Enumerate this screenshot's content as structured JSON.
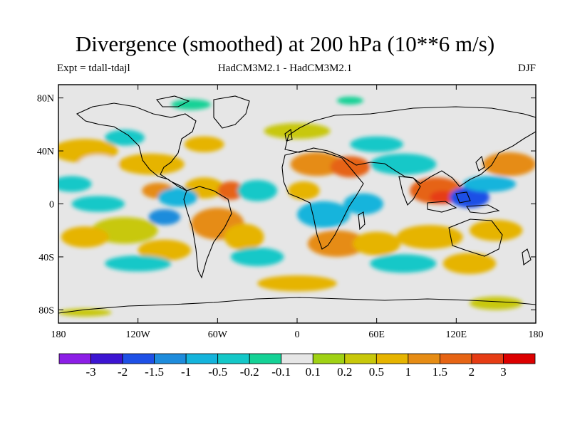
{
  "title": "Divergence (smoothed) at 200 hPa (10**6 m/s)",
  "experiment": "Expt = tdall-tdajl",
  "models": "HadCM3M2.1 - HadCM3M2.1",
  "season": "DJF",
  "map": {
    "lon_range": [
      -180,
      180
    ],
    "lat_range": [
      -90,
      90
    ],
    "lat_ticks": [
      {
        "lat": 80,
        "label": "80N"
      },
      {
        "lat": 40,
        "label": "40N"
      },
      {
        "lat": 0,
        "label": "0"
      },
      {
        "lat": -40,
        "label": "40S"
      },
      {
        "lat": -80,
        "label": "80S"
      }
    ],
    "lon_ticks": [
      {
        "lon": -180,
        "label": "180"
      },
      {
        "lon": -120,
        "label": "120W"
      },
      {
        "lon": -60,
        "label": "60W"
      },
      {
        "lon": 0,
        "label": "0"
      },
      {
        "lon": 60,
        "label": "60E"
      },
      {
        "lon": 120,
        "label": "120E"
      },
      {
        "lon": 180,
        "label": "180"
      }
    ],
    "background_color": "#e6e6e6"
  },
  "colorbar": {
    "colors": [
      "#8c1ee6",
      "#3c14d2",
      "#1e50e6",
      "#1e8cdc",
      "#14b4dc",
      "#14c8c8",
      "#14d296",
      "#e6e6e6",
      "#a0d214",
      "#c8c80a",
      "#e6b400",
      "#e68c14",
      "#e66414",
      "#e63c14",
      "#dc0000"
    ],
    "labels": [
      "-3",
      "-2",
      "-1.5",
      "-1",
      "-0.5",
      "-0.2",
      "-0.1",
      "0.1",
      "0.2",
      "0.5",
      "1",
      "1.5",
      "2",
      "3"
    ]
  },
  "field_blobs": [
    {
      "lon": -160,
      "lat": 40,
      "rx": 25,
      "ry": 9,
      "level": 10
    },
    {
      "lon": -150,
      "lat": 30,
      "rx": 15,
      "ry": 7,
      "level": 7
    },
    {
      "lon": -110,
      "lat": 30,
      "rx": 25,
      "ry": 8,
      "level": 10
    },
    {
      "lon": -105,
      "lat": 10,
      "rx": 12,
      "ry": 6,
      "level": 11
    },
    {
      "lon": -70,
      "lat": 12,
      "rx": 15,
      "ry": 8,
      "level": 10
    },
    {
      "lon": -50,
      "lat": 10,
      "rx": 10,
      "ry": 7,
      "level": 12
    },
    {
      "lon": -60,
      "lat": -15,
      "rx": 20,
      "ry": 12,
      "level": 11
    },
    {
      "lon": -40,
      "lat": -25,
      "rx": 15,
      "ry": 10,
      "level": 10
    },
    {
      "lon": -130,
      "lat": -20,
      "rx": 25,
      "ry": 10,
      "level": 9
    },
    {
      "lon": -160,
      "lat": -25,
      "rx": 18,
      "ry": 8,
      "level": 10
    },
    {
      "lon": -100,
      "lat": -35,
      "rx": 20,
      "ry": 8,
      "level": 10
    },
    {
      "lon": 15,
      "lat": 30,
      "rx": 20,
      "ry": 9,
      "level": 11
    },
    {
      "lon": 40,
      "lat": 28,
      "rx": 15,
      "ry": 8,
      "level": 12
    },
    {
      "lon": 5,
      "lat": 10,
      "rx": 12,
      "ry": 7,
      "level": 10
    },
    {
      "lon": 30,
      "lat": -30,
      "rx": 22,
      "ry": 10,
      "level": 11
    },
    {
      "lon": 60,
      "lat": -30,
      "rx": 18,
      "ry": 9,
      "level": 10
    },
    {
      "lon": 105,
      "lat": 10,
      "rx": 20,
      "ry": 10,
      "level": 12
    },
    {
      "lon": 110,
      "lat": 5,
      "rx": 10,
      "ry": 5,
      "level": 13
    },
    {
      "lon": 160,
      "lat": 30,
      "rx": 20,
      "ry": 9,
      "level": 11
    },
    {
      "lon": 150,
      "lat": -20,
      "rx": 20,
      "ry": 8,
      "level": 10
    },
    {
      "lon": 100,
      "lat": -25,
      "rx": 25,
      "ry": 9,
      "level": 10
    },
    {
      "lon": 130,
      "lat": -45,
      "rx": 20,
      "ry": 8,
      "level": 10
    },
    {
      "lon": -70,
      "lat": 45,
      "rx": 15,
      "ry": 6,
      "level": 10
    },
    {
      "lon": 0,
      "lat": 55,
      "rx": 25,
      "ry": 6,
      "level": 9
    },
    {
      "lon": 0,
      "lat": -60,
      "rx": 30,
      "ry": 6,
      "level": 10
    },
    {
      "lon": 150,
      "lat": -75,
      "rx": 20,
      "ry": 5,
      "level": 9
    },
    {
      "lon": -150,
      "lat": 0,
      "rx": 20,
      "ry": 6,
      "level": 5
    },
    {
      "lon": -90,
      "lat": 5,
      "rx": 15,
      "ry": 7,
      "level": 4
    },
    {
      "lon": -100,
      "lat": -10,
      "rx": 12,
      "ry": 6,
      "level": 3
    },
    {
      "lon": -30,
      "lat": 10,
      "rx": 15,
      "ry": 8,
      "level": 5
    },
    {
      "lon": 20,
      "lat": -8,
      "rx": 20,
      "ry": 10,
      "level": 4
    },
    {
      "lon": 50,
      "lat": 0,
      "rx": 15,
      "ry": 8,
      "level": 4
    },
    {
      "lon": 80,
      "lat": 30,
      "rx": 25,
      "ry": 8,
      "level": 5
    },
    {
      "lon": 130,
      "lat": 5,
      "rx": 15,
      "ry": 8,
      "level": 2
    },
    {
      "lon": 145,
      "lat": 15,
      "rx": 20,
      "ry": 6,
      "level": 4
    },
    {
      "lon": -170,
      "lat": 15,
      "rx": 15,
      "ry": 6,
      "level": 5
    },
    {
      "lon": -130,
      "lat": 50,
      "rx": 15,
      "ry": 6,
      "level": 5
    },
    {
      "lon": 60,
      "lat": 45,
      "rx": 20,
      "ry": 6,
      "level": 5
    },
    {
      "lon": -30,
      "lat": -40,
      "rx": 20,
      "ry": 7,
      "level": 5
    },
    {
      "lon": 80,
      "lat": -45,
      "rx": 25,
      "ry": 7,
      "level": 5
    },
    {
      "lon": -120,
      "lat": -45,
      "rx": 25,
      "ry": 6,
      "level": 5
    },
    {
      "lon": -80,
      "lat": 75,
      "rx": 15,
      "ry": 4,
      "level": 6
    },
    {
      "lon": 40,
      "lat": 78,
      "rx": 10,
      "ry": 3,
      "level": 6
    },
    {
      "lon": -160,
      "lat": -82,
      "rx": 20,
      "ry": 3,
      "level": 9
    }
  ]
}
